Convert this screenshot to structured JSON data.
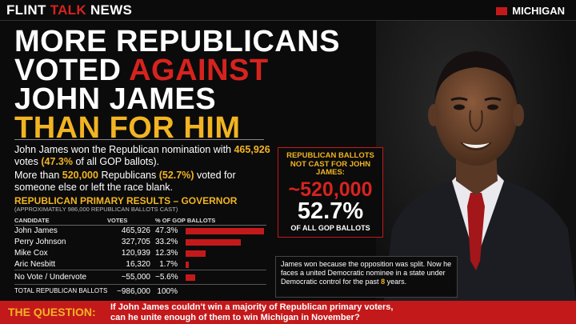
{
  "header": {
    "brand_1": "FLINT",
    "brand_2": "TALK",
    "brand_3": "NEWS",
    "region": "MICHIGAN"
  },
  "headline": {
    "line1": "MORE REPUBLICANS",
    "line2a": "VOTED",
    "line2b": "AGAINST",
    "line3": "JOHN JAMES",
    "line4": "THAN FOR HIM"
  },
  "intro": {
    "p1a": "John James won the Republican nomination with",
    "p1b": "465,926",
    "p1c": "votes",
    "p1d": "(47.3%",
    "p1e": "of all GOP ballots).",
    "p2a": "More than",
    "p2b": "520,000",
    "p2c": "Republicans",
    "p2d": "(52.7%)",
    "p2e": "voted for someone else or left the race blank."
  },
  "section": {
    "title": "REPUBLICAN PRIMARY RESULTS – GOVERNOR",
    "subtitle": "(APPROXIMATELY 986,000 REPUBLICAN BALLOTS CAST)"
  },
  "table": {
    "col_candidate": "CANDIDATE",
    "col_votes": "VOTES",
    "col_pct": "% OF GOP BALLOTS"
  },
  "chart_data": {
    "type": "bar",
    "title": "REPUBLICAN PRIMARY RESULTS – GOVERNOR",
    "categories": [
      "John James",
      "Perry Johnson",
      "Mike Cox",
      "Aric Nesbitt",
      "No Vote / Undervote"
    ],
    "votes": [
      "465,926",
      "327,705",
      "120,939",
      "16,320",
      "~55,000"
    ],
    "pct_labels": [
      "47.3%",
      "33.2%",
      "12.3%",
      "1.7%",
      "~5.6%"
    ],
    "values": [
      47.3,
      33.2,
      12.3,
      1.7,
      5.6
    ],
    "total_label": "TOTAL REPUBLICAN BALLOTS",
    "total_votes": "~986,000",
    "total_pct": "100%",
    "bar_color": "#c4191b"
  },
  "callout": {
    "label": "REPUBLICAN BALLOTS NOT CAST FOR JOHN JAMES:",
    "big": "~520,000",
    "pct": "52.7%",
    "sub": "OF ALL GOP BALLOTS"
  },
  "note": {
    "text_a": "James won because the opposition was split. Now he faces a united Democratic nominee in a state under Democratic control for the past",
    "num": "8",
    "text_b": "years."
  },
  "question": {
    "label": "THE QUESTION:",
    "line1": "If John James couldn't win a majority of Republican primary voters,",
    "line2": "can he unite enough of them to win Michigan in November?"
  },
  "colors": {
    "accent_red": "#d6231e",
    "accent_yellow": "#f2b422",
    "background": "#0b0b0b"
  }
}
